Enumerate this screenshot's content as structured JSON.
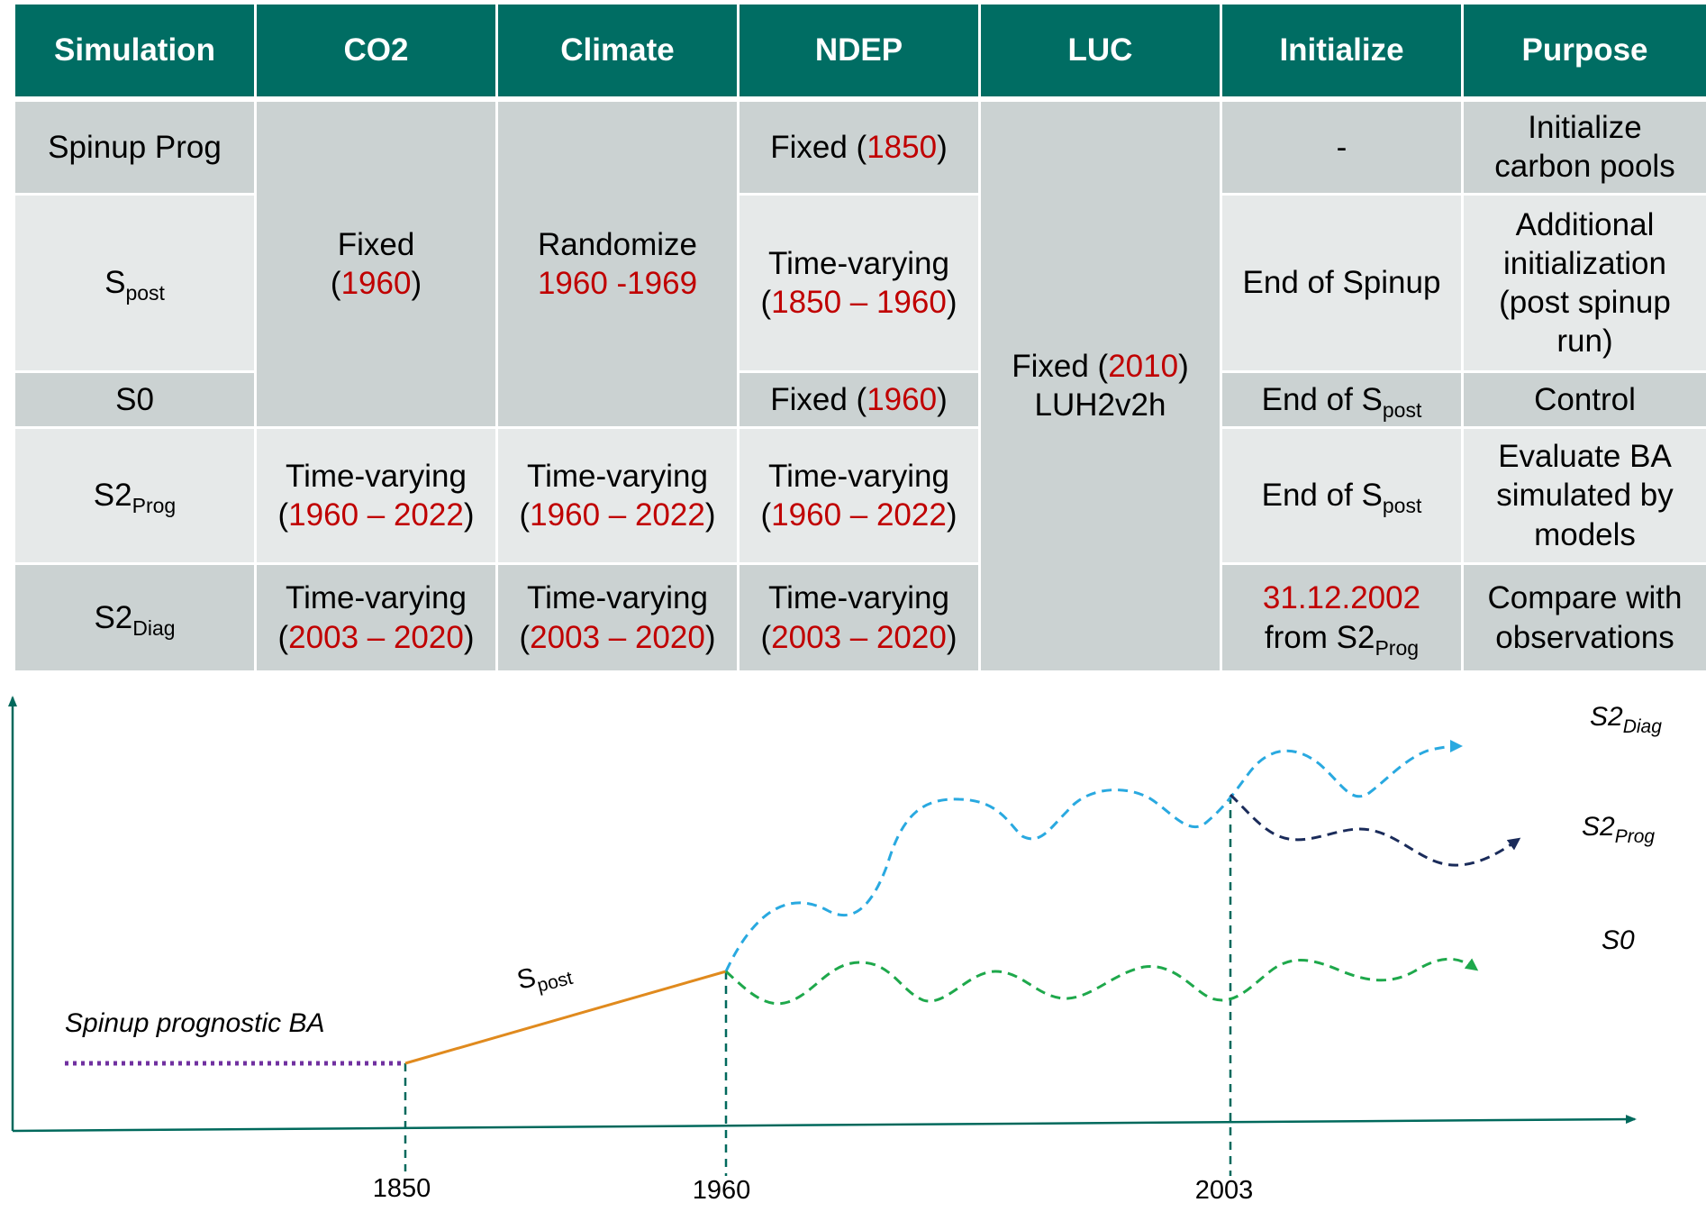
{
  "colors": {
    "header_bg": "#006d63",
    "row_dark": "#cbd2d2",
    "row_light": "#e6e9e9",
    "highlight_red": "#c00000",
    "axis": "#00695c",
    "spinup_line": "#7030a0",
    "spost_line": "#e08a1e",
    "s2diag_line": "#29a9e0",
    "s2prog_line": "#1a2b5a",
    "s0_line": "#1ea84b",
    "marker_line": "#00695c"
  },
  "table": {
    "headers": {
      "simulation": "Simulation",
      "co2": "CO2",
      "climate": "Climate",
      "ndep": "NDEP",
      "luc": "LUC",
      "initialize": "Initialize",
      "purpose": "Purpose"
    },
    "spinup": {
      "name": "Spinup Prog",
      "ndep_pre": "Fixed (",
      "ndep_year": "1850",
      "ndep_post": ")",
      "initialize": "-",
      "purpose_l1": "Initialize",
      "purpose_l2": "carbon pools"
    },
    "spost": {
      "name_main": "S",
      "name_sub": "post",
      "ndep_l1": "Time-varying",
      "ndep_pre": "(",
      "ndep_years": "1850 – 1960",
      "ndep_post": ")",
      "initialize": "End of Spinup",
      "purpose_l1": "Additional",
      "purpose_l2": "initialization",
      "purpose_l3": "(post spinup",
      "purpose_l4": "run)"
    },
    "merged": {
      "co2_l1": "Fixed",
      "co2_pre": "(",
      "co2_year": "1960",
      "co2_post": ")",
      "climate_l1": "Randomize",
      "climate_years": "1960 -1969",
      "luc_pre": "Fixed (",
      "luc_year": "2010",
      "luc_post": ")",
      "luc_l2": "LUH2v2h"
    },
    "s0": {
      "name": "S0",
      "ndep_pre": "Fixed (",
      "ndep_year": "1960",
      "ndep_post": ")",
      "init_main": "End of S",
      "init_sub": "post",
      "purpose": "Control"
    },
    "s2prog": {
      "name_main": "S2",
      "name_sub": "Prog",
      "tv": "Time-varying",
      "pre": "(",
      "years": "1960 – 2022",
      "post": ")",
      "init_main": "End of S",
      "init_sub": "post",
      "purpose_l1": "Evaluate BA",
      "purpose_l2": "simulated by",
      "purpose_l3": "models"
    },
    "s2diag": {
      "name_main": "S2",
      "name_sub": "Diag",
      "tv": "Time-varying",
      "pre": "(",
      "years": "2003 – 2020",
      "post": ")",
      "init_date": "31.12.2002",
      "init_from": "from S2",
      "init_sub": "Prog",
      "purpose_l1": "Compare with",
      "purpose_l2": "observations"
    }
  },
  "timeline": {
    "ticks": {
      "t1850": "1850",
      "t1960": "1960",
      "t2003": "2003"
    },
    "labels": {
      "spinup": "Spinup prognostic BA",
      "spost_main": "S",
      "spost_sub": "post",
      "s2diag_main": "S2",
      "s2diag_sub": "Diag",
      "s2prog_main": "S2",
      "s2prog_sub": "Prog",
      "s0": "S0"
    }
  }
}
